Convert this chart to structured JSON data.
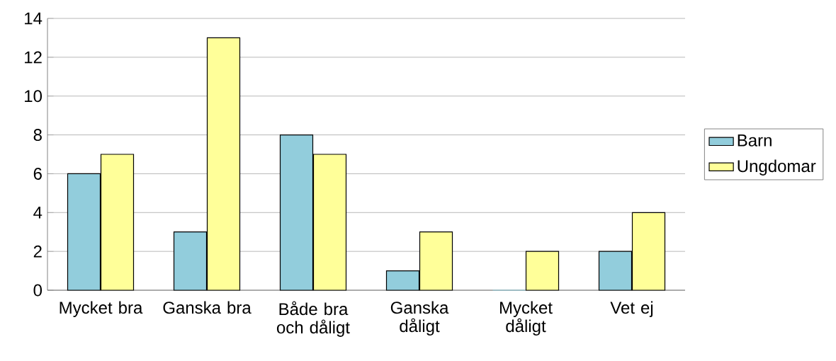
{
  "chart_data": {
    "type": "bar",
    "categories": [
      "Mycket bra",
      "Ganska bra",
      "Både bra och dåligt",
      "Ganska dåligt",
      "Mycket dåligt",
      "Vet ej"
    ],
    "series": [
      {
        "name": "Barn",
        "color": "#92cddc",
        "values": [
          6,
          3,
          8,
          1,
          0,
          2
        ]
      },
      {
        "name": "Ungdomar",
        "color": "#ffff99",
        "values": [
          7,
          13,
          7,
          3,
          2,
          4
        ]
      }
    ],
    "ylim": [
      0,
      14
    ],
    "yticks": [
      0,
      2,
      4,
      6,
      8,
      10,
      12,
      14
    ],
    "grid": "y",
    "legend": "right"
  }
}
